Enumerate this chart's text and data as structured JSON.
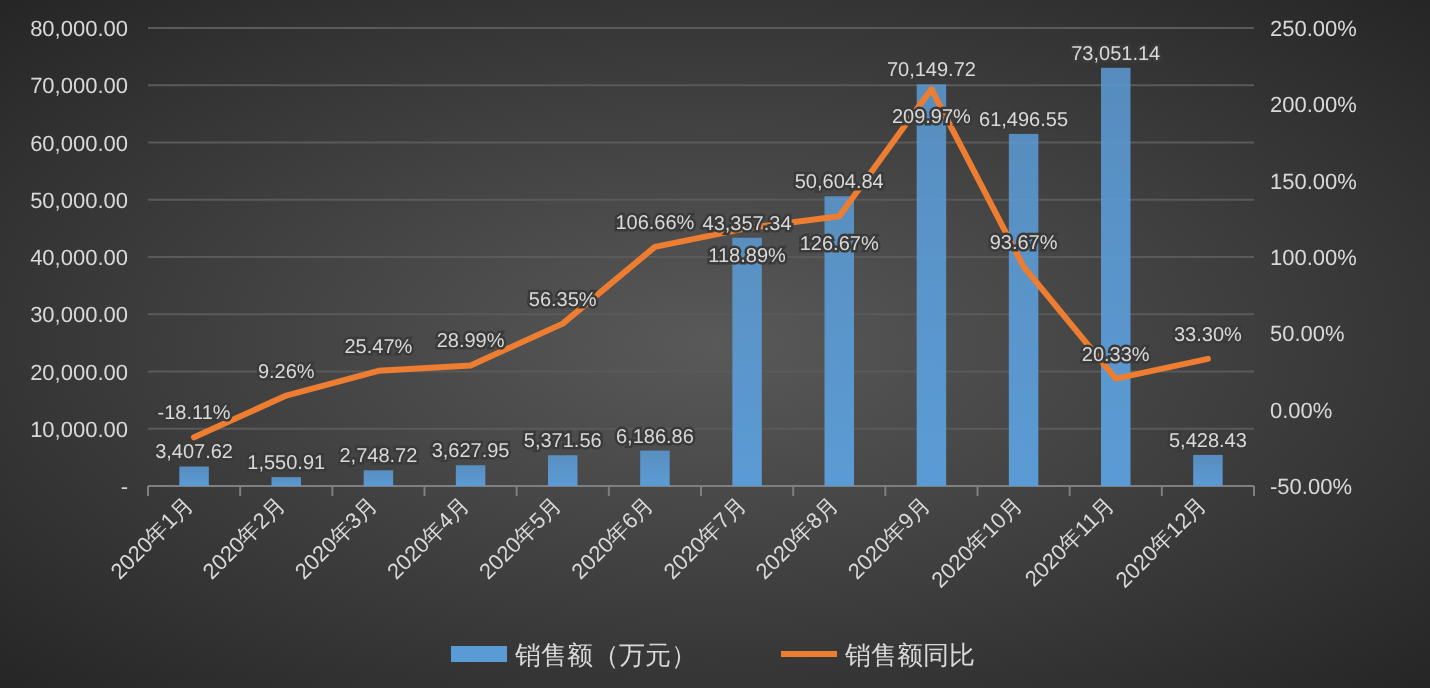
{
  "chart_data": {
    "type": "bar",
    "categories": [
      "2020年1月",
      "2020年2月",
      "2020年3月",
      "2020年4月",
      "2020年5月",
      "2020年6月",
      "2020年7月",
      "2020年8月",
      "2020年9月",
      "2020年10月",
      "2020年11月",
      "2020年12月"
    ],
    "series": [
      {
        "name": "销售额（万元）",
        "color": "#5b9bd5",
        "values": [
          3407.62,
          1550.91,
          2748.72,
          3627.95,
          5371.56,
          6186.86,
          43357.34,
          50604.84,
          70149.72,
          61496.55,
          73051.14,
          5428.43
        ],
        "value_labels": [
          "3,407.62",
          "1,550.91",
          "2,748.72",
          "3,627.95",
          "5,371.56",
          "6,186.86",
          "43,357.34",
          "50,604.84",
          "70,149.72",
          "61,496.55",
          "73,051.14",
          "5,428.43"
        ]
      },
      {
        "name": "销售额同比",
        "type": "line",
        "axis": "y2",
        "color": "#ed7d31",
        "values": [
          -18.11,
          9.26,
          25.47,
          28.99,
          56.35,
          106.66,
          118.89,
          126.67,
          209.97,
          93.67,
          20.33,
          33.3
        ],
        "value_labels": [
          "-18.11%",
          "9.26%",
          "25.47%",
          "28.99%",
          "56.35%",
          "106.66%",
          "118.89%",
          "126.67%",
          "209.97%",
          "93.67%",
          "20.33%",
          "33.30%"
        ]
      }
    ],
    "ylim": [
      0,
      80000
    ],
    "yticks": [
      {
        "value": 0,
        "label": "-"
      },
      {
        "value": 10000,
        "label": "10,000.00"
      },
      {
        "value": 20000,
        "label": "20,000.00"
      },
      {
        "value": 30000,
        "label": "30,000.00"
      },
      {
        "value": 40000,
        "label": "40,000.00"
      },
      {
        "value": 50000,
        "label": "50,000.00"
      },
      {
        "value": 60000,
        "label": "60,000.00"
      },
      {
        "value": 70000,
        "label": "70,000.00"
      },
      {
        "value": 80000,
        "label": "80,000.00"
      }
    ],
    "y2lim": [
      -50,
      250
    ],
    "y2ticks": [
      {
        "value": -50,
        "label": "-50.00%"
      },
      {
        "value": 0,
        "label": "0.00%"
      },
      {
        "value": 50,
        "label": "50.00%"
      },
      {
        "value": 100,
        "label": "100.00%"
      },
      {
        "value": 150,
        "label": "150.00%"
      },
      {
        "value": 200,
        "label": "200.00%"
      },
      {
        "value": 250,
        "label": "250.00%"
      }
    ],
    "grid": "y",
    "legend": "bottom",
    "marker": "none"
  }
}
